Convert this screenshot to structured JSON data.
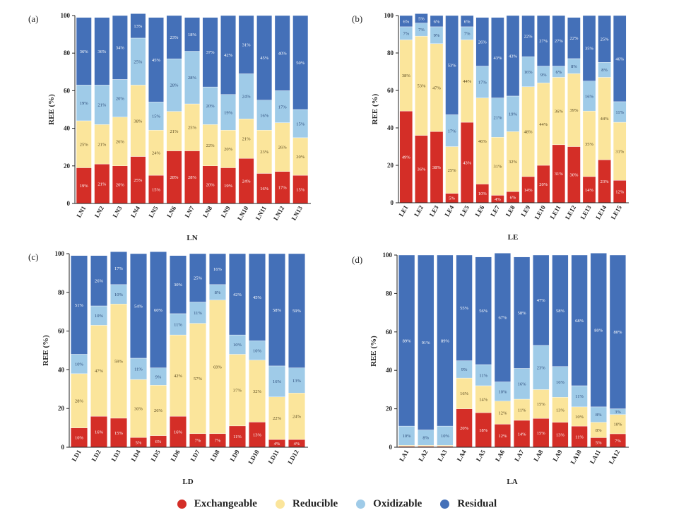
{
  "legend": {
    "items": [
      {
        "label": "Exchangeable",
        "color": "#d42e27"
      },
      {
        "label": "Reducible",
        "color": "#fbe59b"
      },
      {
        "label": "Oxidizable",
        "color": "#9fcbe8"
      },
      {
        "label": "Residual",
        "color": "#4470b8"
      }
    ]
  },
  "chart_data": [
    {
      "type": "bar",
      "stacked": true,
      "panel": "(a)",
      "xlabel": "LN",
      "ylabel": "REE (%)",
      "ylim": [
        0,
        100
      ],
      "yticks": [
        "0",
        "20",
        "40",
        "60",
        "80",
        "100"
      ],
      "categories": [
        "LN1",
        "LN2",
        "LN3",
        "LN4",
        "LN5",
        "LN6",
        "LN7",
        "LN8",
        "LN9",
        "LN10",
        "LN11",
        "LN12",
        "LN13"
      ],
      "series": [
        {
          "name": "Exchangeable",
          "values": [
            19,
            21,
            20,
            25,
            15,
            28,
            28,
            20,
            19,
            24,
            16,
            17,
            15
          ],
          "labels": [
            "19%",
            "21%",
            "20%",
            "25%",
            "15%",
            "28%",
            "28%",
            "20%",
            "19%",
            "24%",
            "16%",
            "17%",
            "15%"
          ]
        },
        {
          "name": "Reducible",
          "values": [
            25,
            21,
            26,
            38,
            24,
            21,
            25,
            22,
            20,
            21,
            23,
            26,
            20
          ],
          "labels": [
            "25%",
            "21%",
            "26%",
            "38%",
            "24%",
            "21%",
            "25%",
            "22%",
            "20%",
            "21%",
            "23%",
            "26%",
            "20%"
          ]
        },
        {
          "name": "Oxidizable",
          "values": [
            19,
            21,
            20,
            25,
            15,
            28,
            28,
            20,
            19,
            24,
            16,
            17,
            15
          ],
          "labels": [
            "19%",
            "21%",
            "20%",
            "25%",
            "15%",
            "28%",
            "28%",
            "20%",
            "19%",
            "24%",
            "16%",
            "17%",
            "15%"
          ]
        },
        {
          "name": "Residual",
          "values": [
            36,
            36,
            34,
            13,
            45,
            23,
            18,
            37,
            42,
            31,
            45,
            40,
            50
          ],
          "labels": [
            "36%",
            "36%",
            "34%",
            "13%",
            "45%",
            "23%",
            "18%",
            "37%",
            "42%",
            "31%",
            "45%",
            "40%",
            "50%"
          ]
        }
      ]
    },
    {
      "type": "bar",
      "stacked": true,
      "panel": "(b)",
      "xlabel": "LE",
      "ylabel": "REE (%)",
      "ylim": [
        0,
        100
      ],
      "yticks": [
        "0",
        "20",
        "40",
        "60",
        "80",
        "100"
      ],
      "categories": [
        "LE1",
        "LE2",
        "LE3",
        "LE4",
        "LE5",
        "LE6",
        "LE7",
        "LE8",
        "LE9",
        "LE10",
        "LE11",
        "LE12",
        "LE13",
        "LE14",
        "LE15"
      ],
      "series": [
        {
          "name": "Exchangeable",
          "values": [
            49,
            36,
            38,
            5,
            43,
            10,
            4,
            6,
            14,
            20,
            31,
            30,
            14,
            23,
            12
          ],
          "labels": [
            "49%",
            "36%",
            "38%",
            "5%",
            "43%",
            "10%",
            "4%",
            "6%",
            "14%",
            "20%",
            "31%",
            "30%",
            "14%",
            "23%",
            "12%"
          ]
        },
        {
          "name": "Reducible",
          "values": [
            38,
            53,
            47,
            25,
            44,
            46,
            31,
            32,
            48,
            44,
            36,
            39,
            35,
            44,
            31
          ],
          "labels": [
            "38%",
            "53%",
            "47%",
            "25%",
            "44%",
            "46%",
            "31%",
            "32%",
            "48%",
            "44%",
            "36%",
            "39%",
            "35%",
            "44%",
            "31%"
          ]
        },
        {
          "name": "Oxidizable",
          "values": [
            7,
            7,
            9,
            17,
            7,
            17,
            21,
            19,
            16,
            9,
            6,
            8,
            16,
            8,
            11
          ],
          "labels": [
            "7%",
            "7%",
            "9%",
            "17%",
            "7%",
            "17%",
            "21%",
            "19%",
            "16%",
            "9%",
            "6%",
            "8%",
            "16%",
            "8%",
            "11%"
          ]
        },
        {
          "name": "Residual",
          "values": [
            6,
            5,
            6,
            53,
            6,
            26,
            43,
            43,
            22,
            27,
            27,
            22,
            35,
            25,
            46
          ],
          "labels": [
            "6%",
            "5%",
            "6%",
            "53%",
            "6%",
            "26%",
            "43%",
            "43%",
            "22%",
            "27%",
            "27%",
            "22%",
            "35%",
            "25%",
            "46%"
          ]
        }
      ]
    },
    {
      "type": "bar",
      "stacked": true,
      "panel": "(c)",
      "xlabel": "LD",
      "ylabel": "REE (%)",
      "ylim": [
        0,
        100
      ],
      "yticks": [
        "0",
        "20",
        "40",
        "60",
        "80",
        "100"
      ],
      "categories": [
        "LD1",
        "LD2",
        "LD3",
        "LD4",
        "LD5",
        "LD6",
        "LD7",
        "LD8",
        "LD9",
        "LD10",
        "LD11",
        "LD12"
      ],
      "series": [
        {
          "name": "Exchangeable",
          "values": [
            10,
            16,
            15,
            5,
            6,
            16,
            7,
            7,
            11,
            13,
            4,
            4
          ],
          "labels": [
            "10%",
            "16%",
            "15%",
            "5%",
            "6%",
            "16%",
            "7%",
            "7%",
            "11%",
            "13%",
            "4%",
            "4%"
          ]
        },
        {
          "name": "Reducible",
          "values": [
            28,
            47,
            59,
            30,
            26,
            42,
            57,
            69,
            37,
            32,
            22,
            24
          ],
          "labels": [
            "28%",
            "47%",
            "59%",
            "30%",
            "26%",
            "42%",
            "57%",
            "69%",
            "37%",
            "32%",
            "22%",
            "24%"
          ]
        },
        {
          "name": "Oxidizable",
          "values": [
            10,
            10,
            10,
            11,
            9,
            11,
            11,
            8,
            10,
            10,
            16,
            13
          ],
          "labels": [
            "10%",
            "10%",
            "10%",
            "11%",
            "9%",
            "11%",
            "11%",
            "8%",
            "10%",
            "10%",
            "16%",
            "13%"
          ]
        },
        {
          "name": "Residual",
          "values": [
            51,
            26,
            17,
            54,
            60,
            30,
            25,
            16,
            42,
            45,
            58,
            59
          ],
          "labels": [
            "51%",
            "26%",
            "17%",
            "54%",
            "60%",
            "30%",
            "25%",
            "16%",
            "42%",
            "45%",
            "58%",
            "59%"
          ]
        }
      ]
    },
    {
      "type": "bar",
      "stacked": true,
      "panel": "(d)",
      "xlabel": "LA",
      "ylabel": "REE (%)",
      "ylim": [
        0,
        100
      ],
      "yticks": [
        "0",
        "20",
        "40",
        "60",
        "80",
        "100"
      ],
      "categories": [
        "LA1",
        "LA2",
        "LA3",
        "LA4",
        "LA5",
        "LA6",
        "LA7",
        "LA8",
        "LA9",
        "LA10",
        "LA11",
        "LA12"
      ],
      "series": [
        {
          "name": "Exchangeable",
          "values": [
            0.5,
            0.5,
            0.5,
            20,
            18,
            12,
            14,
            15,
            13,
            11,
            5,
            7
          ],
          "labels": [
            "",
            "",
            "",
            "20%",
            "18%",
            "12%",
            "14%",
            "15%",
            "13%",
            "11%",
            "5%",
            "7%"
          ]
        },
        {
          "name": "Reducible",
          "values": [
            0.5,
            0.5,
            0.5,
            16,
            14,
            12,
            11,
            15,
            13,
            10,
            8,
            10
          ],
          "labels": [
            "",
            "",
            "",
            "16%",
            "14%",
            "12%",
            "11%",
            "15%",
            "13%",
            "10%",
            "8%",
            "10%"
          ]
        },
        {
          "name": "Oxidizable",
          "values": [
            10,
            8,
            10,
            9,
            11,
            10,
            16,
            23,
            16,
            11,
            8,
            3
          ],
          "labels": [
            "10%",
            "8%",
            "10%",
            "9%",
            "11%",
            "10%",
            "16%",
            "23%",
            "16%",
            "11%",
            "8%",
            "3%"
          ]
        },
        {
          "name": "Residual",
          "values": [
            89,
            91,
            89,
            55,
            56,
            67,
            58,
            47,
            58,
            68,
            80,
            80
          ],
          "labels": [
            "89%",
            "91%",
            "89%",
            "55%",
            "56%",
            "67%",
            "58%",
            "47%",
            "58%",
            "68%",
            "80%",
            "80%"
          ]
        }
      ]
    }
  ]
}
